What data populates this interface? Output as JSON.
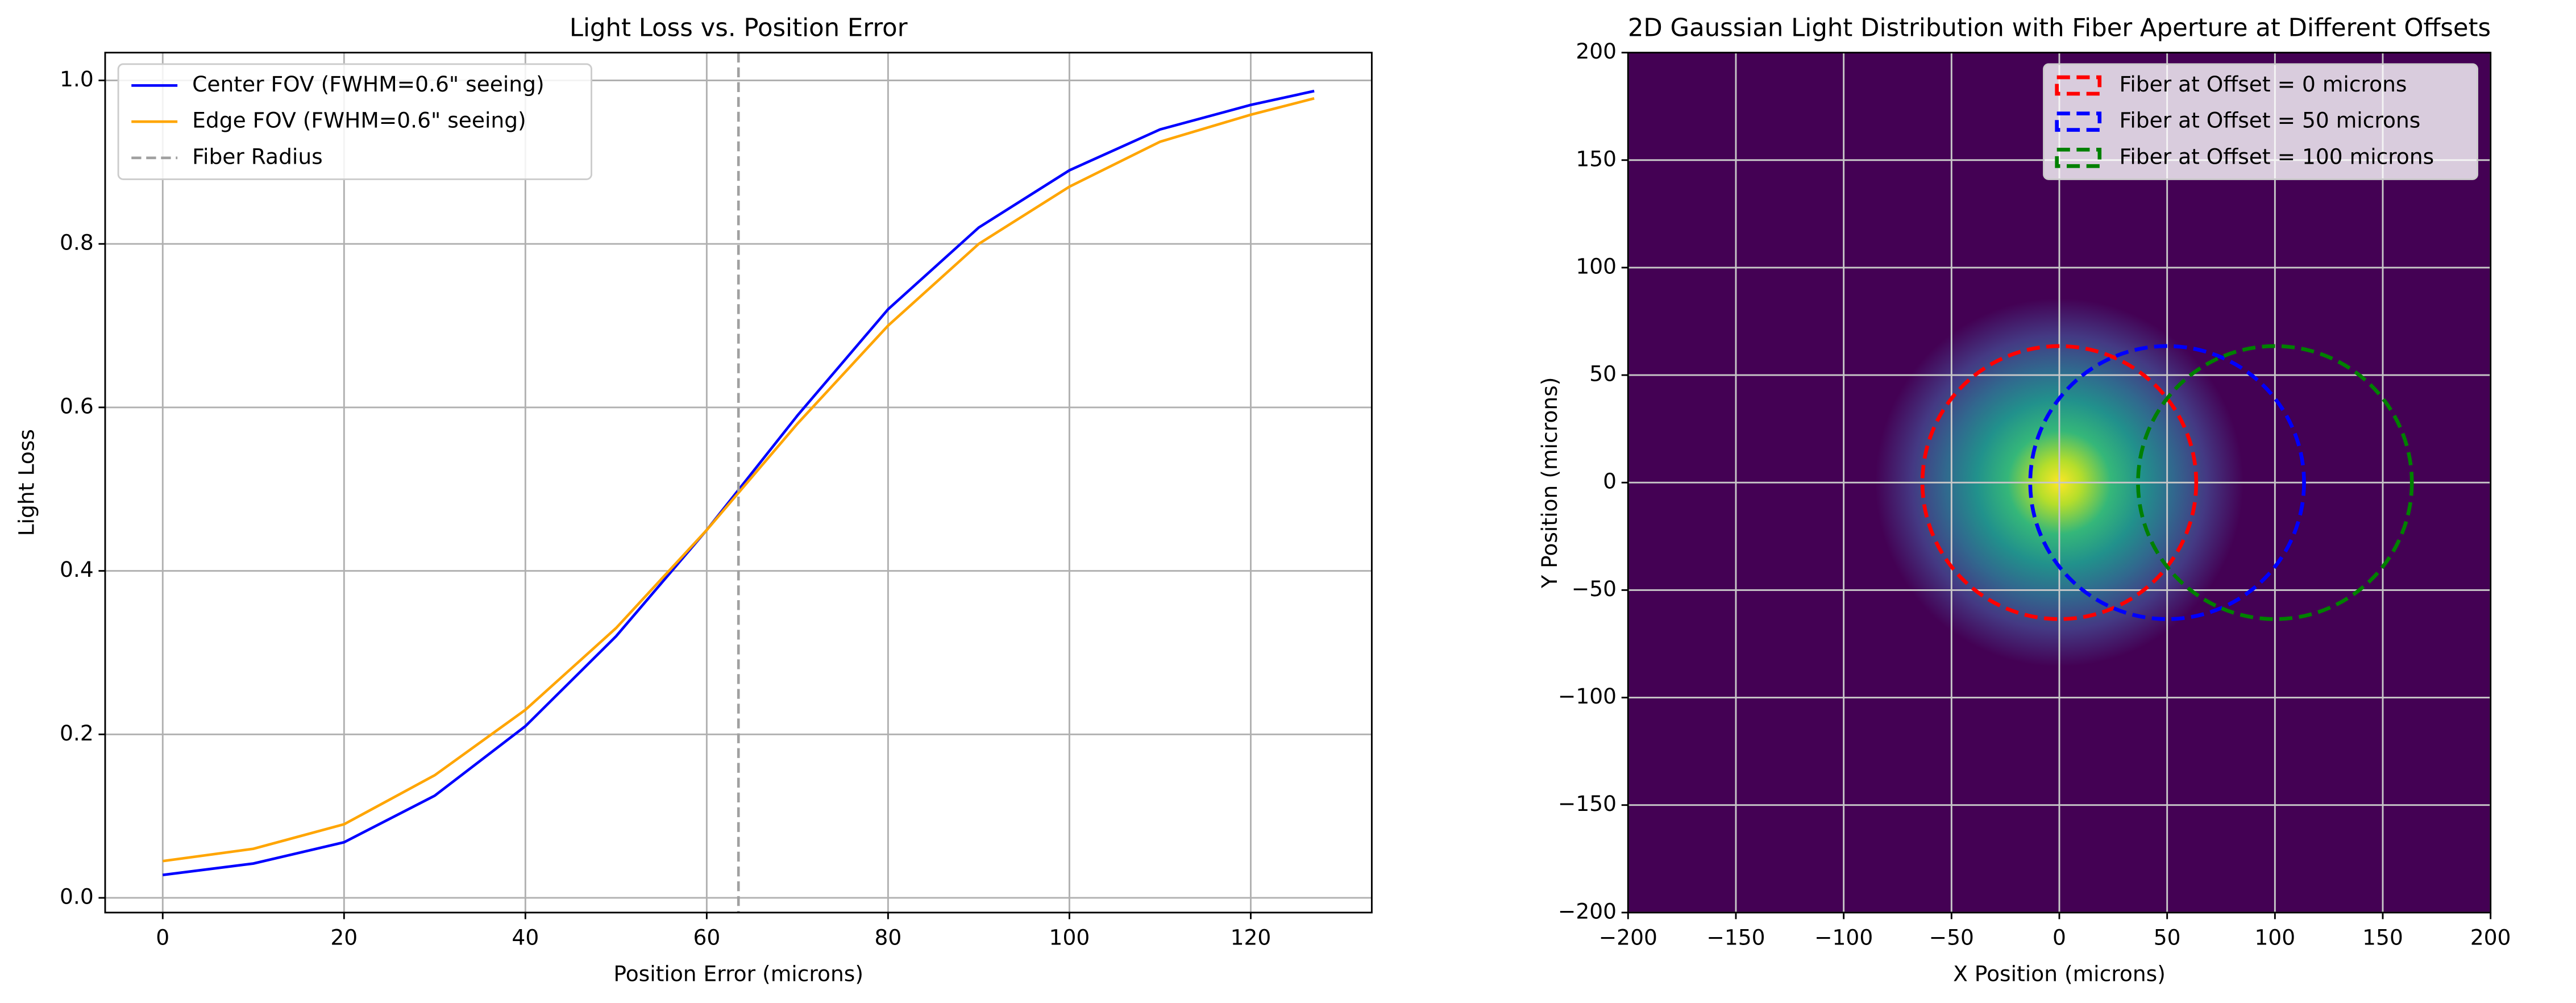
{
  "chart_data": [
    {
      "type": "line",
      "title": "Light Loss vs. Position Error",
      "x_label": "Position Error (microns)",
      "y_label": "Light Loss",
      "x": [
        0,
        10,
        20,
        30,
        40,
        50,
        60,
        70,
        80,
        90,
        100,
        110,
        120,
        127
      ],
      "series": [
        {
          "name": "Center FOV (FWHM=0.6\" seeing)",
          "color": "#0000ff",
          "values": [
            0.028,
            0.042,
            0.068,
            0.125,
            0.21,
            0.32,
            0.45,
            0.59,
            0.72,
            0.82,
            0.89,
            0.94,
            0.97,
            0.987
          ]
        },
        {
          "name": "Edge FOV (FWHM=0.6\" seeing)",
          "color": "#ffa500",
          "values": [
            0.045,
            0.06,
            0.09,
            0.15,
            0.23,
            0.33,
            0.45,
            0.58,
            0.7,
            0.8,
            0.87,
            0.925,
            0.958,
            0.978
          ]
        }
      ],
      "vlines": [
        {
          "name": "Fiber Radius",
          "color": "#a0a0a0",
          "x": 63.5
        }
      ],
      "xlim": [
        -6.35,
        133.35
      ],
      "ylim": [
        -0.018,
        1.034
      ],
      "xticks": [
        0,
        20,
        40,
        60,
        80,
        100,
        120
      ],
      "yticks": [
        {
          "value": 0,
          "label": "0.0"
        },
        {
          "value": 0.2,
          "label": "0.2"
        },
        {
          "value": 0.4,
          "label": "0.4"
        },
        {
          "value": 0.6,
          "label": "0.6"
        },
        {
          "value": 0.8,
          "label": "0.8"
        },
        {
          "value": 1,
          "label": "1.0"
        }
      ],
      "grid": true,
      "legend": "upper left"
    },
    {
      "type": "heatmap",
      "title": "2D Gaussian Light Distribution with Fiber Aperture at Different Offsets",
      "x_label": "X Position (microns)",
      "y_label": "Y Position (microns)",
      "circles": [
        {
          "name": "Fiber at Offset = 0 microns",
          "color": "#ff0000",
          "x": 0,
          "y": 0,
          "r": 63.5
        },
        {
          "name": "Fiber at Offset = 50 microns",
          "color": "#0000ff",
          "x": 50,
          "y": 0,
          "r": 63.5
        },
        {
          "name": "Fiber at Offset = 100 microns",
          "color": "#008000",
          "x": 100,
          "y": 0,
          "r": 63.5
        }
      ],
      "xlim": [
        -200,
        200
      ],
      "ylim": [
        -200,
        200
      ],
      "xticks": [
        {
          "value": -200,
          "label": "−200"
        },
        {
          "value": -150,
          "label": "−150"
        },
        {
          "value": -100,
          "label": "−100"
        },
        {
          "value": -50,
          "label": "−50"
        },
        0,
        50,
        100,
        150,
        200
      ],
      "yticks": [
        {
          "value": -200,
          "label": "−200"
        },
        {
          "value": -150,
          "label": "−150"
        },
        {
          "value": -100,
          "label": "−100"
        },
        {
          "value": -50,
          "label": "−50"
        },
        0,
        50,
        100,
        150,
        200
      ],
      "grid": true,
      "legend": "upper right"
    }
  ]
}
